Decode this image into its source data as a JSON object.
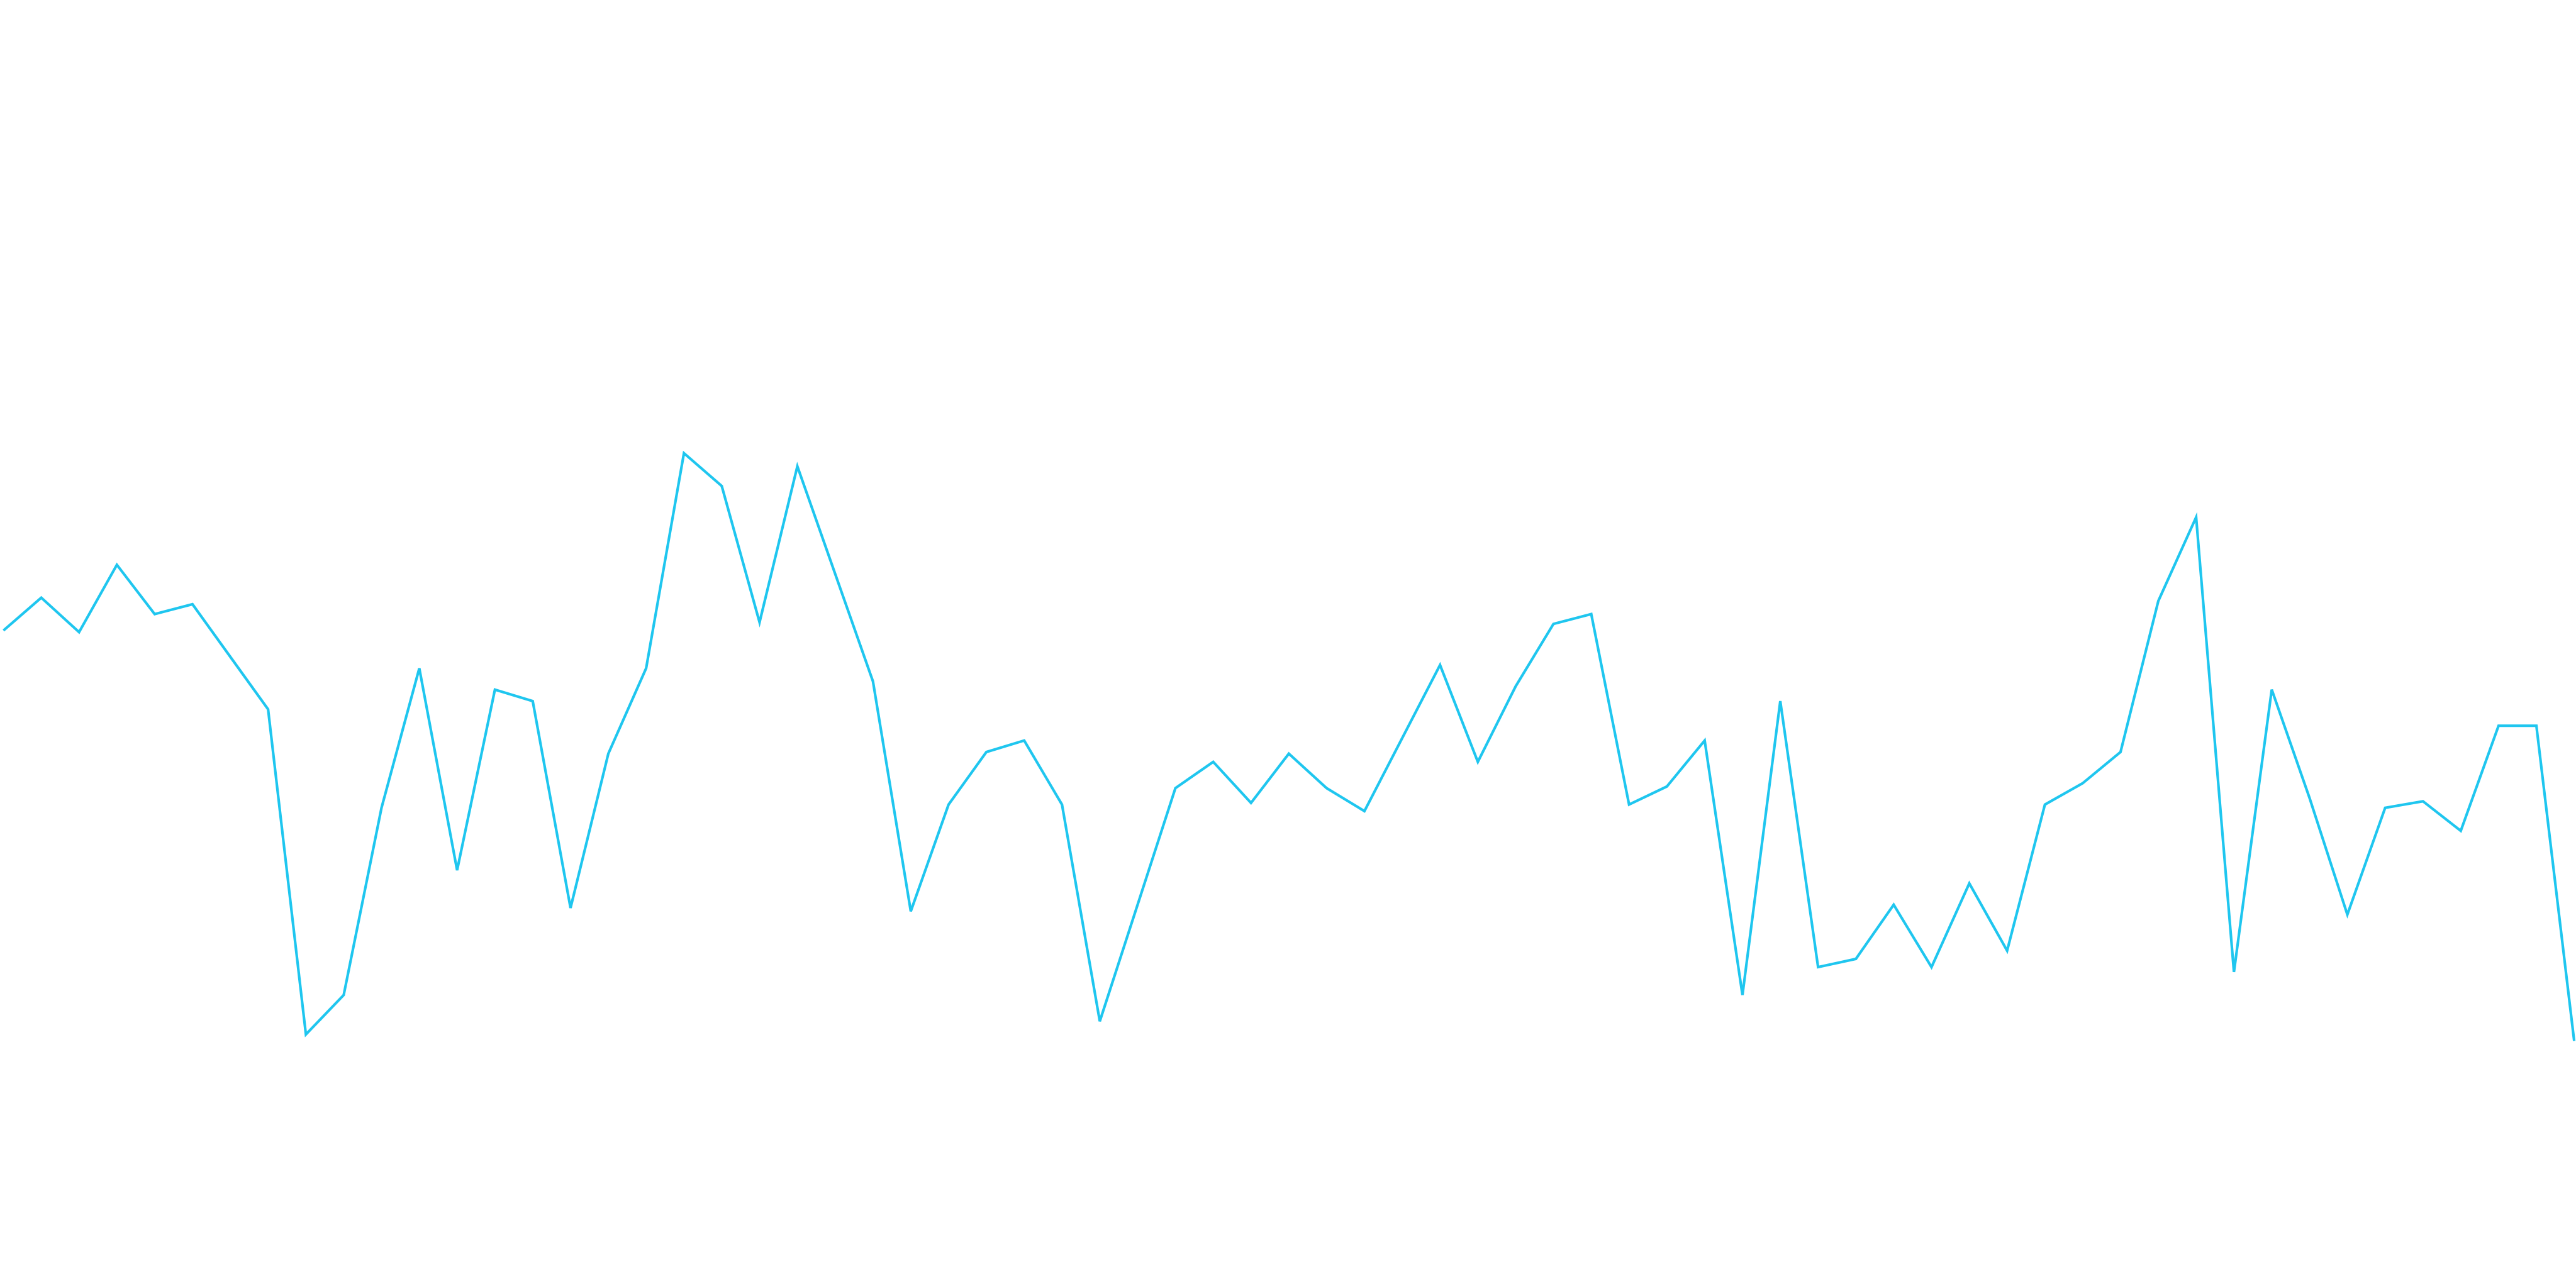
{
  "chart_data": {
    "type": "line",
    "x": [
      0,
      1,
      2,
      3,
      4,
      5,
      7,
      8,
      9,
      10,
      11,
      12,
      13,
      14,
      15,
      16,
      17,
      18,
      19,
      20,
      21,
      23,
      24,
      25,
      26,
      27,
      28,
      29,
      31,
      32,
      33,
      34,
      35,
      36,
      38,
      39,
      40,
      41,
      42,
      43,
      44,
      45,
      46,
      47,
      48,
      49,
      50,
      51,
      52,
      53,
      54,
      55,
      56,
      57,
      58,
      59,
      60,
      61,
      62,
      63,
      64,
      65,
      66,
      67,
      68
    ],
    "values": [
      398,
      418,
      397,
      438,
      408,
      414,
      350,
      152,
      176,
      290,
      375,
      252,
      362,
      355,
      229,
      323,
      375,
      506,
      486,
      403,
      498,
      367,
      227,
      292,
      324,
      331,
      292,
      160,
      302,
      318,
      293,
      323,
      302,
      288,
      377,
      318,
      364,
      402,
      408,
      292,
      303,
      331,
      176,
      355,
      193,
      198,
      231,
      193,
      244,
      203,
      292,
      305,
      324,
      416,
      467,
      190,
      362,
      296,
      225,
      290,
      294,
      276,
      340,
      340,
      148
    ],
    "color": "#1fc6ef",
    "xlim": [
      0,
      68
    ],
    "ylim": [
      0,
      782
    ]
  }
}
